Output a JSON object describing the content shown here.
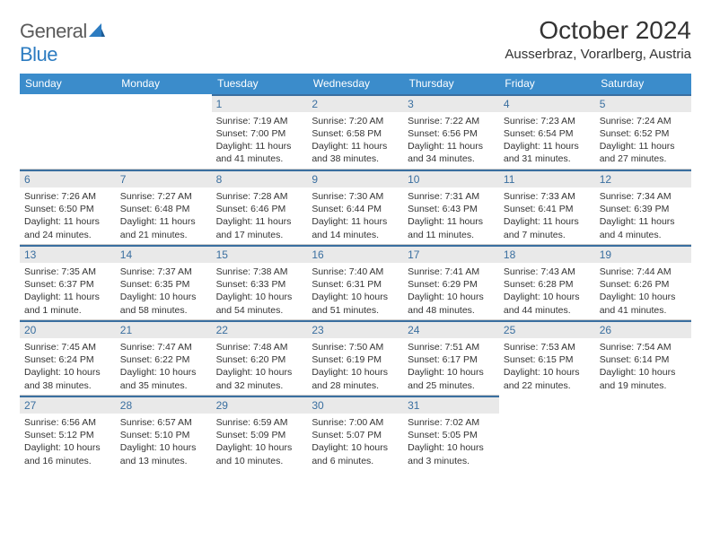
{
  "brand": {
    "general": "General",
    "blue": "Blue"
  },
  "title": "October 2024",
  "location": "Ausserbraz, Vorarlberg, Austria",
  "colors": {
    "header_bg": "#3b8ccb",
    "header_text": "#ffffff",
    "daynum_bg": "#e9e9e9",
    "daynum_text": "#3a6fa0",
    "daynum_border": "#3a6fa0",
    "cell_border": "#cccccc",
    "body_text": "#333333",
    "logo_grey": "#5b5b5b",
    "logo_blue": "#2d7cc1"
  },
  "weekdays": [
    "Sunday",
    "Monday",
    "Tuesday",
    "Wednesday",
    "Thursday",
    "Friday",
    "Saturday"
  ],
  "weeks": [
    [
      {
        "blank": true
      },
      {
        "blank": true
      },
      {
        "n": "1",
        "r": "7:19 AM",
        "s": "7:00 PM",
        "d": "11 hours and 41 minutes."
      },
      {
        "n": "2",
        "r": "7:20 AM",
        "s": "6:58 PM",
        "d": "11 hours and 38 minutes."
      },
      {
        "n": "3",
        "r": "7:22 AM",
        "s": "6:56 PM",
        "d": "11 hours and 34 minutes."
      },
      {
        "n": "4",
        "r": "7:23 AM",
        "s": "6:54 PM",
        "d": "11 hours and 31 minutes."
      },
      {
        "n": "5",
        "r": "7:24 AM",
        "s": "6:52 PM",
        "d": "11 hours and 27 minutes."
      }
    ],
    [
      {
        "n": "6",
        "r": "7:26 AM",
        "s": "6:50 PM",
        "d": "11 hours and 24 minutes."
      },
      {
        "n": "7",
        "r": "7:27 AM",
        "s": "6:48 PM",
        "d": "11 hours and 21 minutes."
      },
      {
        "n": "8",
        "r": "7:28 AM",
        "s": "6:46 PM",
        "d": "11 hours and 17 minutes."
      },
      {
        "n": "9",
        "r": "7:30 AM",
        "s": "6:44 PM",
        "d": "11 hours and 14 minutes."
      },
      {
        "n": "10",
        "r": "7:31 AM",
        "s": "6:43 PM",
        "d": "11 hours and 11 minutes."
      },
      {
        "n": "11",
        "r": "7:33 AM",
        "s": "6:41 PM",
        "d": "11 hours and 7 minutes."
      },
      {
        "n": "12",
        "r": "7:34 AM",
        "s": "6:39 PM",
        "d": "11 hours and 4 minutes."
      }
    ],
    [
      {
        "n": "13",
        "r": "7:35 AM",
        "s": "6:37 PM",
        "d": "11 hours and 1 minute."
      },
      {
        "n": "14",
        "r": "7:37 AM",
        "s": "6:35 PM",
        "d": "10 hours and 58 minutes."
      },
      {
        "n": "15",
        "r": "7:38 AM",
        "s": "6:33 PM",
        "d": "10 hours and 54 minutes."
      },
      {
        "n": "16",
        "r": "7:40 AM",
        "s": "6:31 PM",
        "d": "10 hours and 51 minutes."
      },
      {
        "n": "17",
        "r": "7:41 AM",
        "s": "6:29 PM",
        "d": "10 hours and 48 minutes."
      },
      {
        "n": "18",
        "r": "7:43 AM",
        "s": "6:28 PM",
        "d": "10 hours and 44 minutes."
      },
      {
        "n": "19",
        "r": "7:44 AM",
        "s": "6:26 PM",
        "d": "10 hours and 41 minutes."
      }
    ],
    [
      {
        "n": "20",
        "r": "7:45 AM",
        "s": "6:24 PM",
        "d": "10 hours and 38 minutes."
      },
      {
        "n": "21",
        "r": "7:47 AM",
        "s": "6:22 PM",
        "d": "10 hours and 35 minutes."
      },
      {
        "n": "22",
        "r": "7:48 AM",
        "s": "6:20 PM",
        "d": "10 hours and 32 minutes."
      },
      {
        "n": "23",
        "r": "7:50 AM",
        "s": "6:19 PM",
        "d": "10 hours and 28 minutes."
      },
      {
        "n": "24",
        "r": "7:51 AM",
        "s": "6:17 PM",
        "d": "10 hours and 25 minutes."
      },
      {
        "n": "25",
        "r": "7:53 AM",
        "s": "6:15 PM",
        "d": "10 hours and 22 minutes."
      },
      {
        "n": "26",
        "r": "7:54 AM",
        "s": "6:14 PM",
        "d": "10 hours and 19 minutes."
      }
    ],
    [
      {
        "n": "27",
        "r": "6:56 AM",
        "s": "5:12 PM",
        "d": "10 hours and 16 minutes."
      },
      {
        "n": "28",
        "r": "6:57 AM",
        "s": "5:10 PM",
        "d": "10 hours and 13 minutes."
      },
      {
        "n": "29",
        "r": "6:59 AM",
        "s": "5:09 PM",
        "d": "10 hours and 10 minutes."
      },
      {
        "n": "30",
        "r": "7:00 AM",
        "s": "5:07 PM",
        "d": "10 hours and 6 minutes."
      },
      {
        "n": "31",
        "r": "7:02 AM",
        "s": "5:05 PM",
        "d": "10 hours and 3 minutes."
      },
      {
        "blank": true
      },
      {
        "blank": true
      }
    ]
  ],
  "labels": {
    "sunrise": "Sunrise: ",
    "sunset": "Sunset: ",
    "daylight": "Daylight: "
  }
}
